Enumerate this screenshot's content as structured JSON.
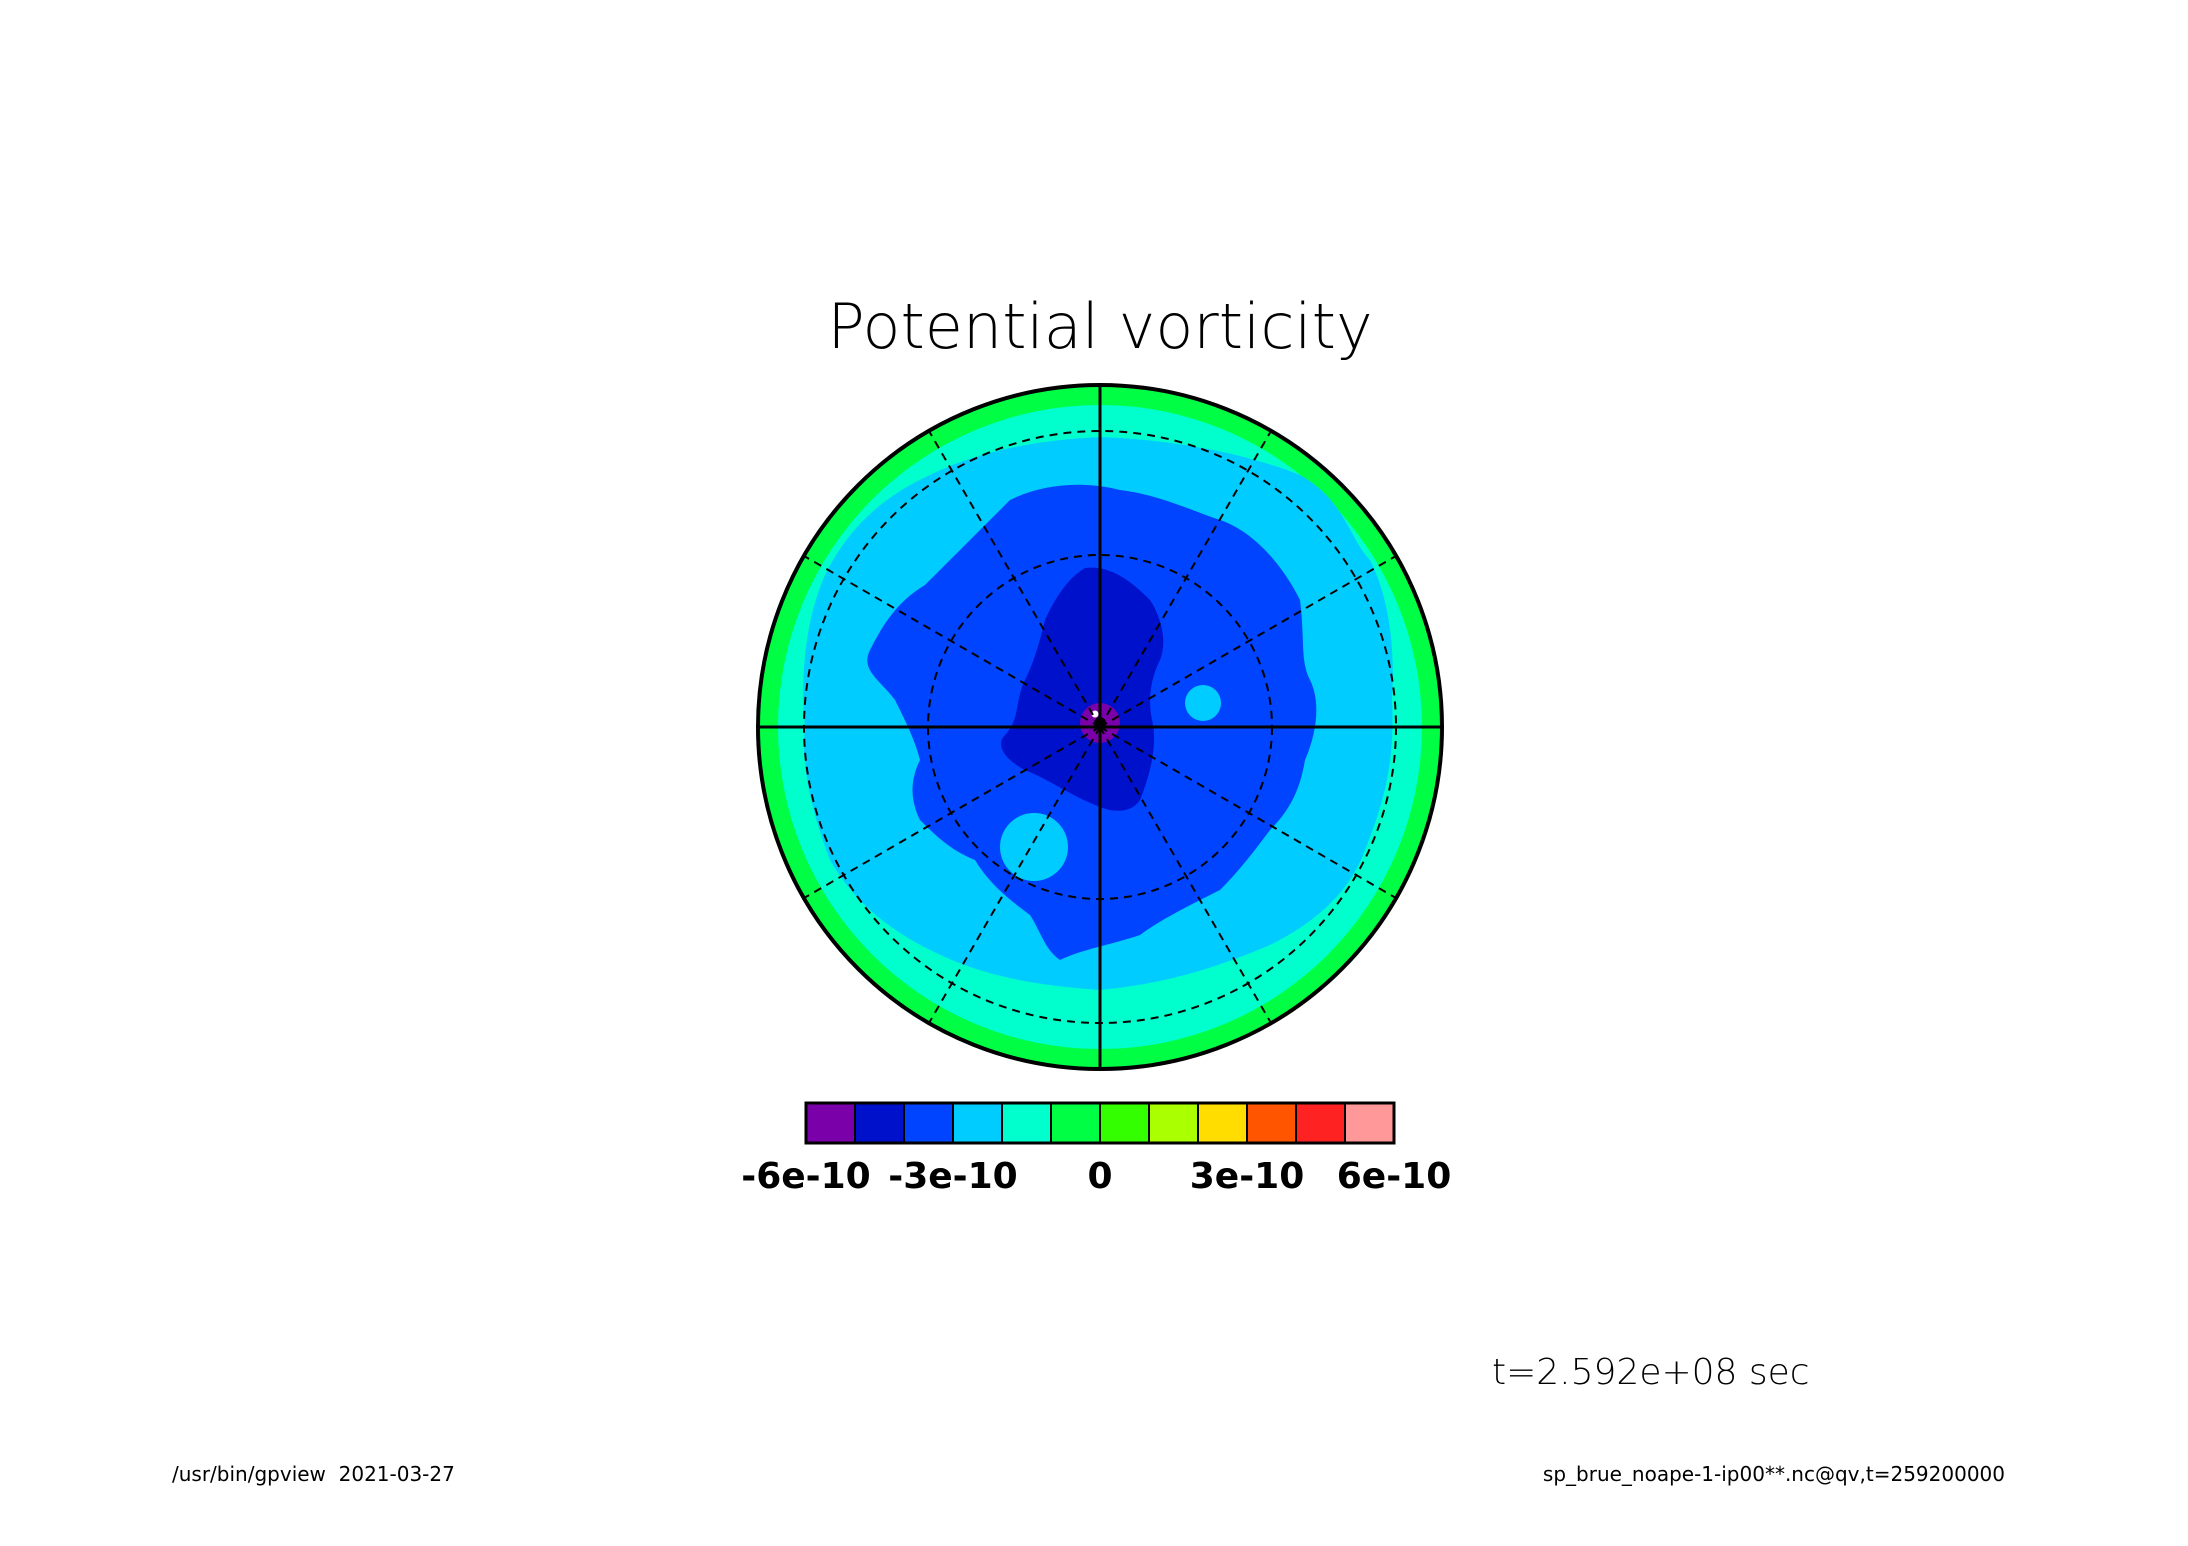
{
  "title": "Potential vorticity",
  "time_label": "t=2.592e+08 sec",
  "footer": {
    "left": "/usr/bin/gpview  2021-03-27",
    "right": "sp_brue_noape-1-ip00**.nc@qv,t=259200000"
  },
  "colorbar": {
    "colors": [
      "#7a00aa",
      "#0011cc",
      "#0044ff",
      "#00ccff",
      "#00ffcc",
      "#00ff44",
      "#33ff00",
      "#aaff00",
      "#ffdd00",
      "#ff5500",
      "#ff2222",
      "#ff9999"
    ],
    "tick_labels": [
      "-6e-10",
      "-3e-10",
      "0",
      "3e-10",
      "6e-10"
    ]
  },
  "map": {
    "projection": "polar stereographic",
    "graticule": {
      "meridians_solid": 4,
      "meridians_dashed": 12,
      "latitude_circles_dashed": 3
    },
    "colors": {
      "outer_ring": "#00ff44",
      "ring2": "#00ffcc",
      "ring3": "#00ccff",
      "inner_blue": "#0044ff",
      "core": "#0011cc",
      "pole": "#7a00aa"
    }
  }
}
